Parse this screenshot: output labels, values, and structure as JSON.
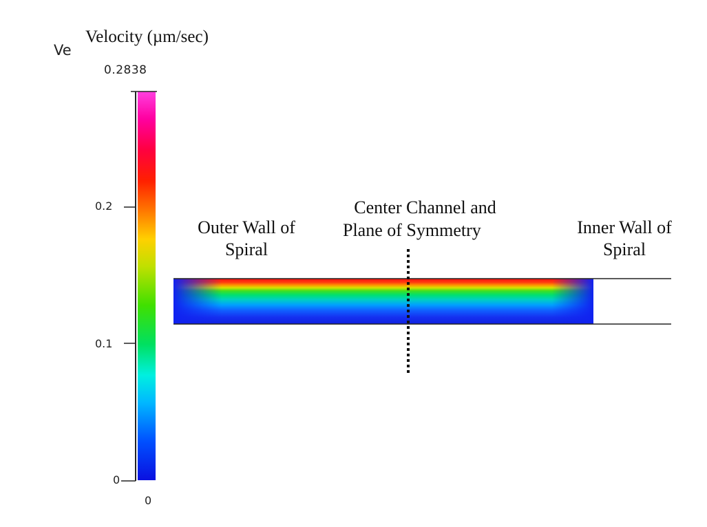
{
  "colorbar": {
    "variable_label": "Ve",
    "title": "Velocity (µm/sec)",
    "max_label": "0.2838",
    "bottom_label": "0",
    "ticks": [
      {
        "label": "0.2",
        "value": 0.2
      },
      {
        "label": "0.1",
        "value": 0.1
      },
      {
        "label": "0",
        "value": 0
      }
    ],
    "min_value": 0,
    "max_value": 0.2838
  },
  "annotations": {
    "outer_wall_line1": "Outer Wall of",
    "outer_wall_line2": "Spiral",
    "center_line1": "Center Channel and",
    "center_line2": "Plane of Symmetry",
    "inner_wall_line1": "Inner Wall of",
    "inner_wall_line2": "Spiral"
  }
}
